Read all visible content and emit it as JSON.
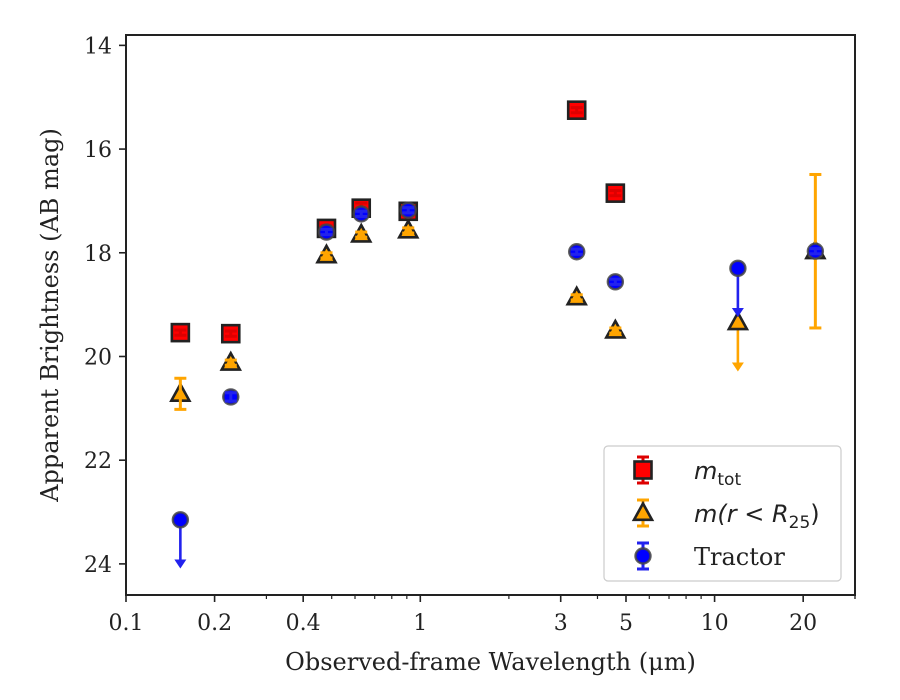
{
  "chart_data": {
    "type": "scatter",
    "xlabel": "Observed-frame Wavelength (μm)",
    "ylabel": "Apparent Brightness (AB mag)",
    "xscale": "log",
    "xlim": [
      0.1,
      30
    ],
    "ylim": [
      24.6,
      13.8
    ],
    "y_inverted": true,
    "xticks": [
      {
        "value": 0.1,
        "label": "0.1"
      },
      {
        "value": 0.2,
        "label": "0.2"
      },
      {
        "value": 0.4,
        "label": "0.4"
      },
      {
        "value": 1,
        "label": "1"
      },
      {
        "value": 3,
        "label": "3"
      },
      {
        "value": 5,
        "label": "5"
      },
      {
        "value": 10,
        "label": "10"
      },
      {
        "value": 20,
        "label": "20"
      }
    ],
    "yticks": [
      {
        "value": 14,
        "label": "14"
      },
      {
        "value": 16,
        "label": "16"
      },
      {
        "value": 18,
        "label": "18"
      },
      {
        "value": 20,
        "label": "20"
      },
      {
        "value": 22,
        "label": "22"
      },
      {
        "value": 24,
        "label": "24"
      }
    ],
    "legend": {
      "position": "lower right"
    },
    "series": [
      {
        "name": "m_tot",
        "legend_label": {
          "base": "m",
          "sub": "tot"
        },
        "marker": "square",
        "color": "#ff0000",
        "errcolor": "#dd0000",
        "points": [
          {
            "x": 0.153,
            "y": 19.54,
            "err": 0.05
          },
          {
            "x": 0.227,
            "y": 19.56,
            "err": 0.05
          },
          {
            "x": 0.48,
            "y": 17.53,
            "err": 0.05
          },
          {
            "x": 0.63,
            "y": 17.14,
            "err": 0.1
          },
          {
            "x": 0.91,
            "y": 17.2,
            "err": 0.05
          },
          {
            "x": 3.4,
            "y": 15.25,
            "err": 0.05
          },
          {
            "x": 4.6,
            "y": 16.85,
            "err": 0.05
          }
        ]
      },
      {
        "name": "m(r < R_25)",
        "legend_label": {
          "base": "m(r < R",
          "sub": "25",
          "end": ")"
        },
        "marker": "triangle",
        "color": "#ffa500",
        "errcolor": "#ffa500",
        "points": [
          {
            "x": 0.153,
            "y": 20.72,
            "err": 0.3
          },
          {
            "x": 0.227,
            "y": 20.12,
            "err": 0.05
          },
          {
            "x": 0.48,
            "y": 18.05,
            "err": 0.05
          },
          {
            "x": 0.63,
            "y": 17.65,
            "err": 0.05
          },
          {
            "x": 0.91,
            "y": 17.57,
            "err": 0.05
          },
          {
            "x": 3.4,
            "y": 18.86,
            "err": 0.05
          },
          {
            "x": 4.6,
            "y": 19.5,
            "err": 0.05
          },
          {
            "x": 12,
            "y": 19.34,
            "upper_limit": true,
            "arrow_to": 20.25
          },
          {
            "x": 22,
            "y": 17.97,
            "err": 1.48
          }
        ]
      },
      {
        "name": "Tractor",
        "marker": "circle",
        "color": "#0000ff",
        "errcolor": "#2222ee",
        "points": [
          {
            "x": 0.153,
            "y": 23.15,
            "upper_limit": true,
            "arrow_to": 24.05
          },
          {
            "x": 0.227,
            "y": 20.78,
            "err": 0.08
          },
          {
            "x": 0.48,
            "y": 17.6,
            "err": 0.05
          },
          {
            "x": 0.63,
            "y": 17.25,
            "err": 0.05
          },
          {
            "x": 0.91,
            "y": 17.18,
            "err": 0.05
          },
          {
            "x": 3.4,
            "y": 17.98,
            "err": 0.05
          },
          {
            "x": 4.6,
            "y": 18.56,
            "err": 0.05
          },
          {
            "x": 12,
            "y": 18.3,
            "upper_limit": true,
            "arrow_to": 19.2
          },
          {
            "x": 22,
            "y": 17.97,
            "err": 0.05
          }
        ]
      }
    ]
  }
}
